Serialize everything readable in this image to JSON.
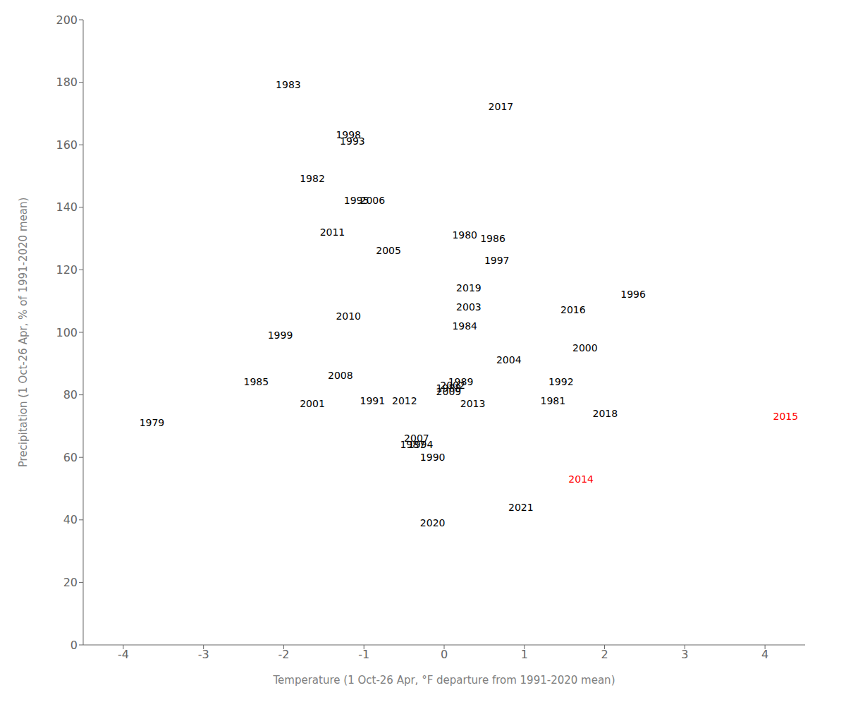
{
  "chart_data": {
    "type": "scatter",
    "xlabel": "Temperature (1 Oct-26 Apr, °F departure from 1991-2020 mean)",
    "ylabel": "Precipitation (1 Oct-26 Apr, % of 1991-2020 mean)",
    "xlim": [
      -4.5,
      4.5
    ],
    "ylim": [
      0,
      200
    ],
    "xticks": [
      -4,
      -3,
      -2,
      -1,
      0,
      1,
      2,
      3,
      4
    ],
    "yticks": [
      0,
      20,
      40,
      60,
      80,
      100,
      120,
      140,
      160,
      180,
      200
    ],
    "grid": false,
    "labels": [
      "1979",
      "1980",
      "1981",
      "1982",
      "1983",
      "1984",
      "1985",
      "1986",
      "1987",
      "1988",
      "1989",
      "1990",
      "1991",
      "1992",
      "1993",
      "1994",
      "1995",
      "1996",
      "1997",
      "1998",
      "1999",
      "2000",
      "2001",
      "2002",
      "2003",
      "2004",
      "2005",
      "2006",
      "2007",
      "2008",
      "2009",
      "2010",
      "2011",
      "2012",
      "2013",
      "2014",
      "2015",
      "2016",
      "2017",
      "2018",
      "2019",
      "2020",
      "2021"
    ],
    "x": [
      -3.8,
      0.1,
      1.2,
      -1.8,
      -2.1,
      0.1,
      -2.5,
      0.45,
      -0.55,
      -0.1,
      0.05,
      -0.3,
      -1.05,
      1.3,
      -1.3,
      -0.45,
      -1.25,
      2.2,
      0.5,
      -1.35,
      -2.2,
      1.6,
      -1.8,
      -0.05,
      0.15,
      0.65,
      -0.85,
      -1.05,
      -0.5,
      -1.45,
      -0.1,
      -1.35,
      -1.55,
      -0.65,
      0.2,
      1.55,
      4.1,
      1.45,
      0.55,
      1.85,
      0.15,
      -0.3,
      0.8
    ],
    "values": [
      70,
      130,
      77,
      148,
      178,
      101,
      83,
      129,
      63,
      81,
      83,
      59,
      77,
      83,
      160,
      63,
      141,
      111,
      122,
      162,
      98,
      94,
      76,
      82,
      107,
      90,
      125,
      141,
      65,
      85,
      80,
      104,
      131,
      77,
      76,
      52,
      72,
      106,
      171,
      73,
      113,
      38,
      43
    ],
    "colors": [
      "#000000",
      "#000000",
      "#000000",
      "#000000",
      "#000000",
      "#000000",
      "#000000",
      "#000000",
      "#000000",
      "#000000",
      "#000000",
      "#000000",
      "#000000",
      "#000000",
      "#000000",
      "#000000",
      "#000000",
      "#000000",
      "#000000",
      "#000000",
      "#000000",
      "#000000",
      "#000000",
      "#000000",
      "#000000",
      "#000000",
      "#000000",
      "#000000",
      "#000000",
      "#000000",
      "#000000",
      "#000000",
      "#000000",
      "#000000",
      "#000000",
      "#ff0000",
      "#ff0000",
      "#000000",
      "#000000",
      "#000000",
      "#000000",
      "#000000",
      "#000000"
    ]
  }
}
